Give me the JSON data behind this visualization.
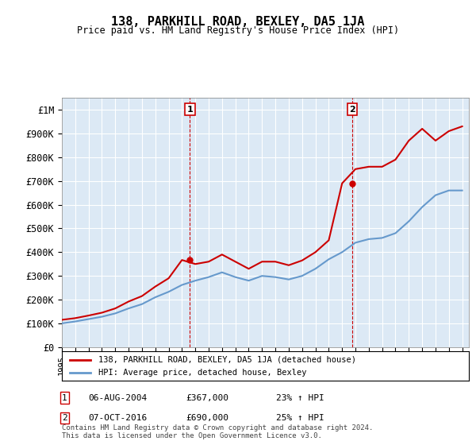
{
  "title": "138, PARKHILL ROAD, BEXLEY, DA5 1JA",
  "subtitle": "Price paid vs. HM Land Registry's House Price Index (HPI)",
  "background_color": "#dce9f5",
  "plot_bg_color": "#dce9f5",
  "red_color": "#cc0000",
  "blue_color": "#6699cc",
  "ylim": [
    0,
    1050000
  ],
  "yticks": [
    0,
    100000,
    200000,
    300000,
    400000,
    500000,
    600000,
    700000,
    800000,
    900000,
    1000000
  ],
  "ytick_labels": [
    "£0",
    "£100K",
    "£200K",
    "£300K",
    "£400K",
    "£500K",
    "£600K",
    "£700K",
    "£800K",
    "£900K",
    "£1M"
  ],
  "hpi_years": [
    1995,
    1996,
    1997,
    1998,
    1999,
    2000,
    2001,
    2002,
    2003,
    2004,
    2005,
    2006,
    2007,
    2008,
    2009,
    2010,
    2011,
    2012,
    2013,
    2014,
    2015,
    2016,
    2017,
    2018,
    2019,
    2020,
    2021,
    2022,
    2023,
    2024,
    2025
  ],
  "hpi_values": [
    100000,
    108000,
    118000,
    128000,
    142000,
    163000,
    181000,
    210000,
    233000,
    262000,
    280000,
    295000,
    315000,
    295000,
    280000,
    300000,
    295000,
    285000,
    300000,
    330000,
    370000,
    400000,
    440000,
    455000,
    460000,
    480000,
    530000,
    590000,
    640000,
    660000,
    660000
  ],
  "red_years": [
    1995,
    1996,
    1997,
    1998,
    1999,
    2000,
    2001,
    2002,
    2003,
    2004,
    2005,
    2006,
    2007,
    2008,
    2009,
    2010,
    2011,
    2012,
    2013,
    2014,
    2015,
    2016,
    2017,
    2018,
    2019,
    2020,
    2021,
    2022,
    2023,
    2024,
    2025
  ],
  "red_values": [
    115000,
    122000,
    133000,
    145000,
    163000,
    192000,
    215000,
    255000,
    290000,
    367000,
    350000,
    360000,
    390000,
    360000,
    330000,
    360000,
    360000,
    345000,
    365000,
    400000,
    450000,
    690000,
    750000,
    760000,
    760000,
    790000,
    870000,
    920000,
    870000,
    910000,
    930000
  ],
  "sale1_year": 2004.6,
  "sale1_value": 367000,
  "sale1_label": "1",
  "sale2_year": 2016.75,
  "sale2_value": 690000,
  "sale2_label": "2",
  "legend_label1": "138, PARKHILL ROAD, BEXLEY, DA5 1JA (detached house)",
  "legend_label2": "HPI: Average price, detached house, Bexley",
  "annotation1_date": "06-AUG-2004",
  "annotation1_price": "£367,000",
  "annotation1_hpi": "23% ↑ HPI",
  "annotation2_date": "07-OCT-2016",
  "annotation2_price": "£690,000",
  "annotation2_hpi": "25% ↑ HPI",
  "footer": "Contains HM Land Registry data © Crown copyright and database right 2024.\nThis data is licensed under the Open Government Licence v3.0.",
  "xlim_start": 1995.0,
  "xlim_end": 2025.5
}
